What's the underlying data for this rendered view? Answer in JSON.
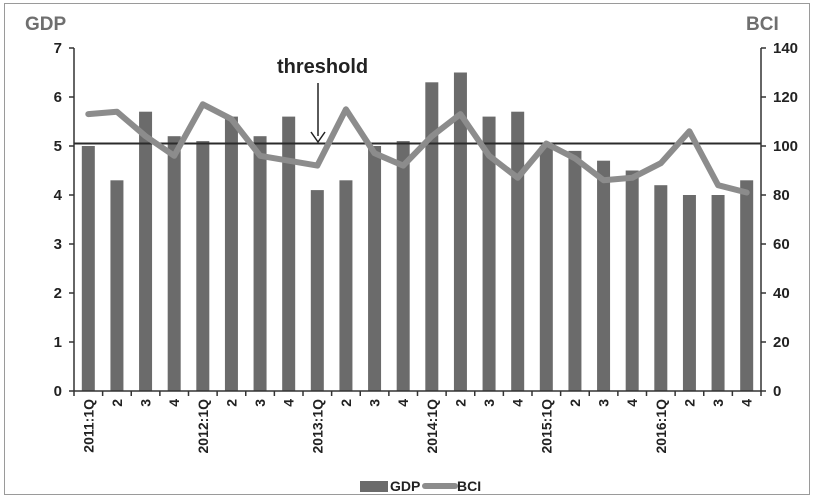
{
  "chart_data": {
    "type": "bar",
    "categories": [
      "2011:1Q",
      "2",
      "3",
      "4",
      "2012:1Q",
      "2",
      "3",
      "4",
      "2013:1Q",
      "2",
      "3",
      "4",
      "2014:1Q",
      "2",
      "3",
      "4",
      "2015:1Q",
      "2",
      "3",
      "4",
      "2016:1Q",
      "2",
      "3",
      "4"
    ],
    "series": [
      {
        "name": "GDP",
        "type": "bar",
        "axis": "left",
        "color": "#6b6b6b",
        "values": [
          5.0,
          4.3,
          5.7,
          5.2,
          5.1,
          5.6,
          5.2,
          5.6,
          4.1,
          4.3,
          5.0,
          5.1,
          6.3,
          6.5,
          5.6,
          5.7,
          5.0,
          4.9,
          4.7,
          4.5,
          4.2,
          4.0,
          4.0,
          4.3
        ]
      },
      {
        "name": "BCI",
        "type": "line",
        "axis": "right",
        "color": "#8c8c8c",
        "values": [
          113,
          114,
          104,
          96,
          117,
          111,
          96,
          94,
          92,
          115,
          97,
          92,
          104,
          113,
          96,
          87,
          101,
          95,
          86,
          87,
          93,
          106,
          84,
          81
        ]
      }
    ],
    "ylabel": "GDP",
    "y2label": "BCI",
    "ylim": [
      0,
      7
    ],
    "y2lim": [
      0,
      140
    ],
    "yticks": [
      "0",
      "1",
      "2",
      "3",
      "4",
      "5",
      "6",
      "7"
    ],
    "y2ticks": [
      "0",
      "20",
      "40",
      "60",
      "80",
      "100",
      "120",
      "140"
    ],
    "threshold": {
      "label": "threshold",
      "value_right_axis": 101
    },
    "legend": {
      "placement": "bottom-center",
      "items": [
        "GDP",
        "BCI"
      ]
    },
    "grid": false
  }
}
